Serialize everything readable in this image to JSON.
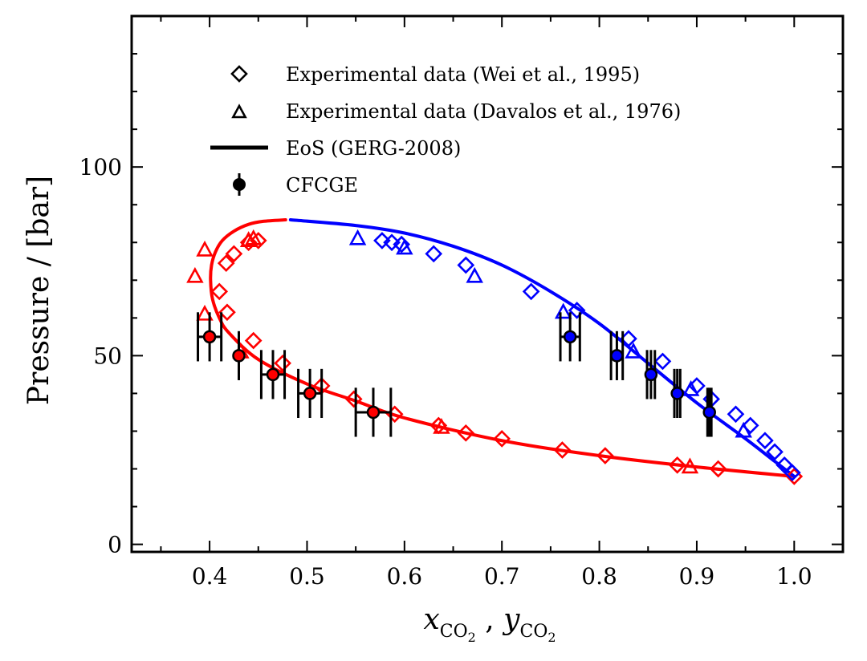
{
  "chart_data": {
    "type": "scatter",
    "title": "",
    "xlabel": "x_CO2 , y_CO2",
    "ylabel": "Pressure / [bar]",
    "xlim": [
      0.32,
      1.05
    ],
    "ylim": [
      -2,
      140
    ],
    "x_ticks": [
      0.4,
      0.5,
      0.6,
      0.7,
      0.8,
      0.9,
      1.0
    ],
    "x_tick_labels": [
      "0.4",
      "0.5",
      "0.6",
      "0.7",
      "0.8",
      "0.9",
      "1.0"
    ],
    "y_ticks": [
      0,
      50,
      100
    ],
    "y_tick_labels": [
      "0",
      "50",
      "100"
    ],
    "legend_position": "top-center",
    "legend": [
      {
        "marker": "diamond",
        "label": "Experimental data (Wei et al., 1995)"
      },
      {
        "marker": "triangle",
        "label": "Experimental data (Davalos et al., 1976)"
      },
      {
        "marker": "line",
        "label": "EoS (GERG-2008)"
      },
      {
        "marker": "errorbar-dot",
        "label": "CFCGE"
      }
    ],
    "colors": {
      "liquid": "#ff0000",
      "vapor": "#0000ff",
      "ink": "#000000"
    },
    "series": [
      {
        "name": "EoS liquid (bubble) curve",
        "kind": "line",
        "color": "#ff0000",
        "x": [
          1.0,
          0.9,
          0.8,
          0.7,
          0.6,
          0.55,
          0.5,
          0.45,
          0.42,
          0.41,
          0.403,
          0.401,
          0.402,
          0.406,
          0.413,
          0.425,
          0.44,
          0.455,
          0.478
        ],
        "y": [
          18,
          20.5,
          23.5,
          27.5,
          33.5,
          38,
          42.5,
          49,
          56,
          60,
          65,
          70,
          74,
          77.5,
          80.5,
          83,
          84.8,
          85.6,
          86
        ]
      },
      {
        "name": "EoS vapor (dew) curve",
        "kind": "line",
        "color": "#0000ff",
        "x": [
          0.483,
          0.55,
          0.6,
          0.65,
          0.7,
          0.75,
          0.8,
          0.85,
          0.9,
          0.95,
          0.98,
          1.0
        ],
        "y": [
          86,
          84.5,
          82.5,
          79,
          74,
          67,
          58.5,
          48,
          37.5,
          28,
          22,
          18
        ]
      },
      {
        "name": "Wei et al. 1995 liquid",
        "kind": "scatter",
        "marker": "diamond",
        "color": "#ff0000",
        "x": [
          0.45,
          0.44,
          0.425,
          0.417,
          0.41,
          0.418,
          0.445,
          0.475,
          0.515,
          0.548,
          0.59,
          0.635,
          0.663,
          0.7,
          0.762,
          0.806,
          0.88,
          0.922,
          1.0
        ],
        "y": [
          80.5,
          80,
          77,
          74.5,
          67,
          61.5,
          54,
          48,
          42,
          38.5,
          34.5,
          31.5,
          29.5,
          28,
          25,
          23.5,
          21,
          20,
          18
        ]
      },
      {
        "name": "Davalos et al. 1976 liquid",
        "kind": "scatter",
        "marker": "triangle",
        "color": "#ff0000",
        "x": [
          0.44,
          0.445,
          0.395,
          0.385,
          0.395,
          0.432,
          0.638,
          0.893
        ],
        "y": [
          80.5,
          81,
          78,
          71,
          61,
          51,
          31,
          20.5
        ]
      },
      {
        "name": "Wei et al. 1995 vapor",
        "kind": "scatter",
        "marker": "diamond",
        "color": "#0000ff",
        "x": [
          0.577,
          0.587,
          0.597,
          0.63,
          0.663,
          0.73,
          0.777,
          0.83,
          0.865,
          0.9,
          0.915,
          0.94,
          0.955,
          0.97,
          0.98,
          0.99,
          0.998
        ],
        "y": [
          80.5,
          80,
          79.5,
          77,
          74,
          67,
          62,
          54.5,
          48.5,
          42,
          38.5,
          34.5,
          31.5,
          27.5,
          24.5,
          21,
          19
        ]
      },
      {
        "name": "Davalos et al. 1976 vapor",
        "kind": "scatter",
        "marker": "triangle",
        "color": "#0000ff",
        "x": [
          0.552,
          0.6,
          0.672,
          0.763,
          0.835,
          0.894,
          0.948
        ],
        "y": [
          81,
          78.5,
          71,
          61.5,
          51,
          41,
          30
        ]
      },
      {
        "name": "CFCGE liquid",
        "kind": "errorbar",
        "color": "#ff0000",
        "x": [
          0.4,
          0.43,
          0.465,
          0.503,
          0.568
        ],
        "y": [
          55,
          50,
          45,
          40,
          35
        ],
        "xerr": [
          0.012,
          0.0,
          0.012,
          0.012,
          0.018
        ],
        "yerr": [
          6.5,
          6.5,
          6.5,
          6.5,
          6.5
        ]
      },
      {
        "name": "CFCGE vapor",
        "kind": "errorbar",
        "color": "#0000ff",
        "x": [
          0.77,
          0.818,
          0.853,
          0.88,
          0.913
        ],
        "y": [
          55,
          50,
          45,
          40,
          35
        ],
        "xerr": [
          0.01,
          0.006,
          0.004,
          0.003,
          0.002
        ],
        "yerr": [
          6.5,
          6.5,
          6.5,
          6.5,
          6.5
        ]
      }
    ]
  }
}
